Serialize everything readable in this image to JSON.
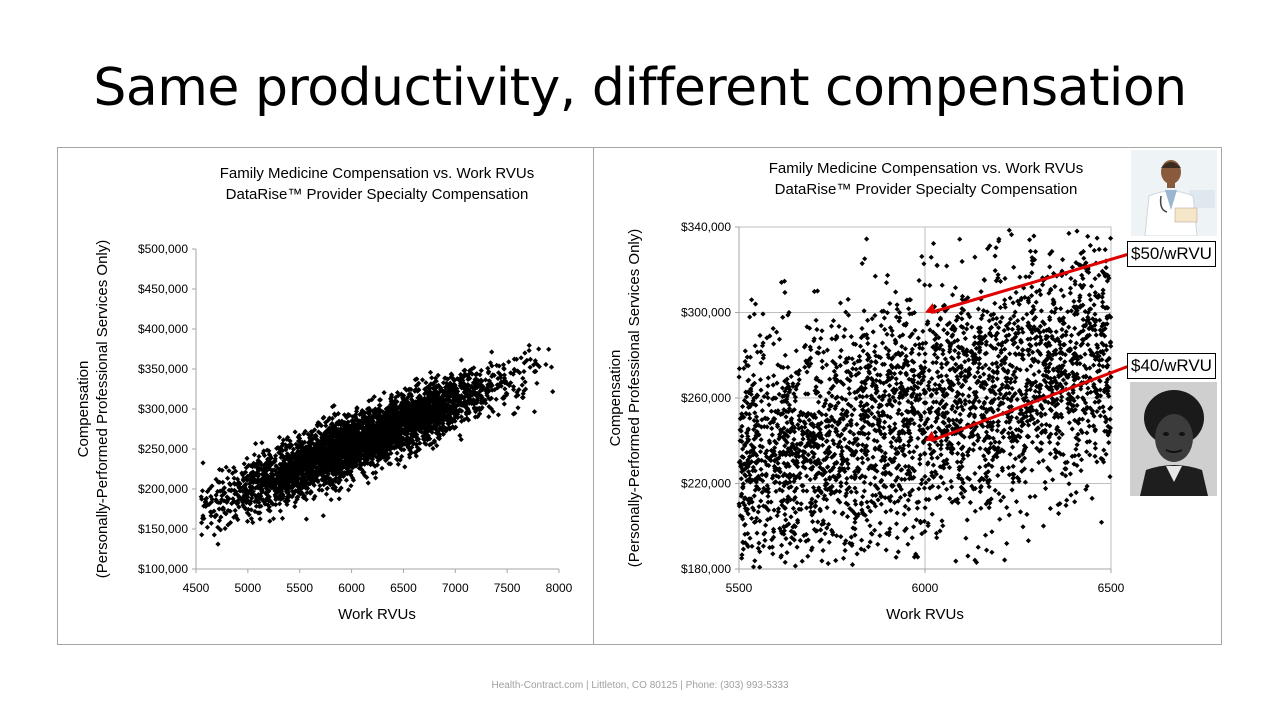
{
  "slide": {
    "title": "Same productivity, different compensation",
    "footer": "Health-Contract.com | Littleton, CO 80125 | Phone: (303) 993-5333"
  },
  "callouts": {
    "high": "$50/wRVU",
    "low": "$40/wRVU"
  },
  "colors": {
    "marker": "#000000",
    "arrow": "#e00000",
    "axis": "#a6a6a6",
    "grid": "#bfbfbf"
  },
  "icons": {
    "top_photo": "smiling-doctor-photo",
    "bottom_photo": "portrait-photo"
  },
  "chart_data": [
    {
      "type": "scatter",
      "title": "Family Medicine Compensation vs. Work RVUs",
      "subtitle": "DataRise™ Provider Specialty Compensation",
      "xlabel": "Work RVUs",
      "ylabel_line1": "Compensation",
      "ylabel_line2": "(Personally-Performed Professional Services Only)",
      "xlim": [
        4500,
        8000
      ],
      "ylim": [
        100000,
        500000
      ],
      "x_ticks": [
        "4500",
        "5000",
        "5500",
        "6000",
        "6500",
        "7000",
        "7500",
        "8000"
      ],
      "y_ticks": [
        "$100,000",
        "$150,000",
        "$200,000",
        "$250,000",
        "$300,000",
        "$350,000",
        "$400,000",
        "$450,000",
        "$500,000"
      ],
      "grid": false,
      "trend": {
        "slope": 55,
        "intercept": -76000,
        "spread": 18000
      },
      "n_points": 5000,
      "x_range_points": [
        4550,
        7950
      ]
    },
    {
      "type": "scatter",
      "title": "Family Medicine Compensation vs. Work RVUs",
      "subtitle": "DataRise™ Provider Specialty Compensation",
      "xlabel": "Work RVUs",
      "ylabel_line1": "Compensation",
      "ylabel_line2": "(Personally-Performed Professional Services Only)",
      "xlim": [
        5500,
        6500
      ],
      "ylim": [
        180000,
        340000
      ],
      "x_ticks": [
        "5500",
        "6000",
        "6500"
      ],
      "y_ticks": [
        "$180,000",
        "$220,000",
        "$260,000",
        "$300,000",
        "$340,000"
      ],
      "grid": true,
      "trend": {
        "slope": 55,
        "intercept": -76000,
        "spread": 28000
      },
      "n_points": 3200,
      "x_range_points": [
        5500,
        6500
      ],
      "annotations": [
        {
          "label": "$50/wRVU",
          "x": 6000,
          "y": 300000
        },
        {
          "label": "$40/wRVU",
          "x": 6000,
          "y": 240000
        }
      ]
    }
  ]
}
